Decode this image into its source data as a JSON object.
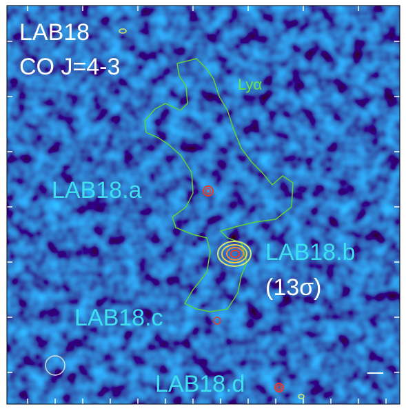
{
  "title": "LAB18",
  "line": "CO J=4-3",
  "lya_label": "Lyα",
  "sources": [
    {
      "label": "LAB18.a"
    },
    {
      "label": "LAB18.b",
      "note": "(13σ)"
    },
    {
      "label": "LAB18.c"
    },
    {
      "label": "LAB18.d"
    }
  ]
}
